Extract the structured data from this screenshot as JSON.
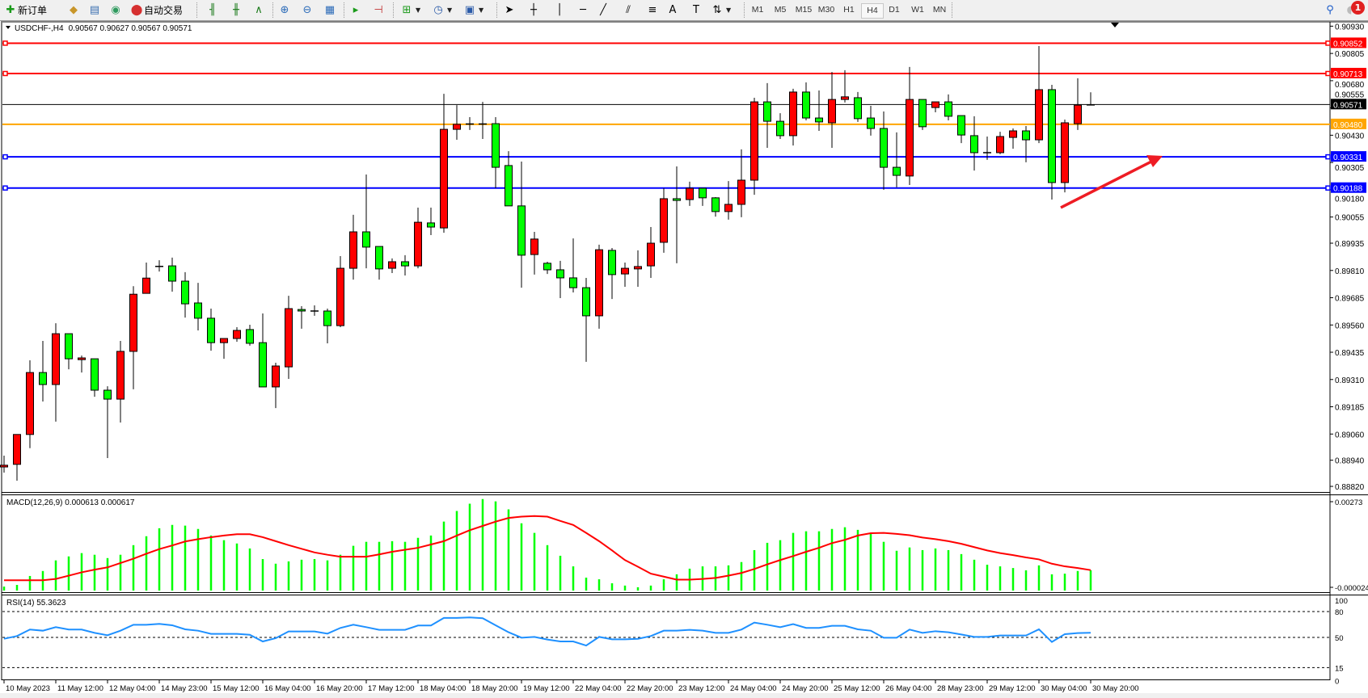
{
  "toolbar": {
    "new_order_label": "新订单",
    "auto_trade_label": "自动交易",
    "periods": [
      "M1",
      "M5",
      "M15",
      "M30",
      "H1",
      "H4",
      "D1",
      "W1",
      "MN"
    ],
    "active_period": "H4",
    "notification_count": "1"
  },
  "chart_header": {
    "symbol": "USDCHF-,H4",
    "ohlc": "0.90567 0.90627 0.90567 0.90571"
  },
  "colors": {
    "bull_candle": "#ff0000",
    "bear_candle": "#00ff00",
    "resistance": "#ff0000",
    "bid_line": "#000000",
    "pivot": "#ffa500",
    "support": "#0000ff",
    "macd_hist": "#00ff00",
    "macd_signal": "#ff0000",
    "rsi": "#1e90ff"
  },
  "chart_data": [
    {
      "type": "candlestick",
      "symbol": "USDCHF-",
      "timeframe": "H4",
      "ylim": [
        0.8882,
        0.9093
      ],
      "y_ticks": [
        "0.90930",
        "0.90805",
        "0.90680",
        "0.90555",
        "0.90430",
        "0.90305",
        "0.90180",
        "0.90055",
        "0.89935",
        "0.89810",
        "0.89685",
        "0.89560",
        "0.89435",
        "0.89310",
        "0.89185",
        "0.89060",
        "0.88940",
        "0.88820"
      ],
      "x_tick_labels": [
        "10 May 2023",
        "11 May 12:00",
        "12 May 04:00",
        "14 May 23:00",
        "15 May 12:00",
        "16 May 04:00",
        "16 May 20:00",
        "17 May 12:00",
        "18 May 04:00",
        "18 May 20:00",
        "19 May 12:00",
        "22 May 04:00",
        "22 May 20:00",
        "23 May 12:00",
        "24 May 04:00",
        "24 May 20:00",
        "25 May 12:00",
        "26 May 04:00",
        "28 May 23:00",
        "29 May 12:00",
        "30 May 04:00",
        "30 May 20:00"
      ],
      "x_tick_every_bars": 4,
      "ohlc_fields": [
        "open",
        "high",
        "low",
        "close"
      ],
      "candles": [
        [
          0.88909,
          0.88961,
          0.88883,
          0.88917
        ],
        [
          0.88921,
          0.89058,
          0.88846,
          0.89058
        ],
        [
          0.89058,
          0.89398,
          0.88995,
          0.89342
        ],
        [
          0.89342,
          0.89487,
          0.89209,
          0.89287
        ],
        [
          0.89287,
          0.89568,
          0.89117,
          0.8952
        ],
        [
          0.8952,
          0.8952,
          0.89357,
          0.89405
        ],
        [
          0.89401,
          0.8942,
          0.89342,
          0.89409
        ],
        [
          0.89405,
          0.89405,
          0.89231,
          0.89261
        ],
        [
          0.89261,
          0.89279,
          0.8895,
          0.8922
        ],
        [
          0.8922,
          0.89487,
          0.89113,
          0.89439
        ],
        [
          0.89439,
          0.89738,
          0.89265,
          0.89701
        ],
        [
          0.89705,
          0.89846,
          0.89705,
          0.89775
        ],
        [
          0.89829,
          0.89857,
          0.89805,
          0.89828
        ],
        [
          0.89831,
          0.89869,
          0.89713,
          0.89761
        ],
        [
          0.89761,
          0.89802,
          0.89594,
          0.89657
        ],
        [
          0.89661,
          0.89753,
          0.89535,
          0.89591
        ],
        [
          0.89591,
          0.89635,
          0.89442,
          0.89479
        ],
        [
          0.89479,
          0.89498,
          0.89405,
          0.89498
        ],
        [
          0.89498,
          0.8955,
          0.89483,
          0.89535
        ],
        [
          0.89539,
          0.89561,
          0.89465,
          0.89476
        ],
        [
          0.89479,
          0.89613,
          0.89276,
          0.89276
        ],
        [
          0.89276,
          0.89387,
          0.89179,
          0.89372
        ],
        [
          0.89368,
          0.89694,
          0.89313,
          0.89635
        ],
        [
          0.89631,
          0.89646,
          0.89543,
          0.89624
        ],
        [
          0.89624,
          0.8965,
          0.89602,
          0.89624
        ],
        [
          0.89624,
          0.89635,
          0.89476,
          0.89557
        ],
        [
          0.89557,
          0.89876,
          0.8955,
          0.8982
        ],
        [
          0.8982,
          0.90065,
          0.89768,
          0.89987
        ],
        [
          0.89987,
          0.9025,
          0.8982,
          0.89917
        ],
        [
          0.8992,
          0.8992,
          0.89768,
          0.89817
        ],
        [
          0.8982,
          0.89865,
          0.89798,
          0.8985
        ],
        [
          0.8985,
          0.8988,
          0.89787,
          0.89831
        ],
        [
          0.89831,
          0.90098,
          0.8982,
          0.90031
        ],
        [
          0.90028,
          0.90098,
          0.89972,
          0.90009
        ],
        [
          0.90005,
          0.9062,
          0.89983,
          0.90457
        ],
        [
          0.90457,
          0.90568,
          0.90409,
          0.9048
        ],
        [
          0.90483,
          0.90513,
          0.90454,
          0.9048
        ],
        [
          0.9048,
          0.90583,
          0.90413,
          0.90483
        ],
        [
          0.90483,
          0.90513,
          0.90187,
          0.90283
        ],
        [
          0.90291,
          0.90357,
          0.90106,
          0.90106
        ],
        [
          0.90106,
          0.90309,
          0.89731,
          0.8988
        ],
        [
          0.89883,
          0.89987,
          0.89791,
          0.89954
        ],
        [
          0.89843,
          0.8985,
          0.89794,
          0.89813
        ],
        [
          0.89813,
          0.89854,
          0.89683,
          0.89776
        ],
        [
          0.89776,
          0.89957,
          0.89709,
          0.89731
        ],
        [
          0.89731,
          0.89776,
          0.89391,
          0.89602
        ],
        [
          0.89602,
          0.89928,
          0.89543,
          0.89905
        ],
        [
          0.89902,
          0.89913,
          0.89679,
          0.89791
        ],
        [
          0.89794,
          0.89846,
          0.89735,
          0.8982
        ],
        [
          0.89817,
          0.89902,
          0.89735,
          0.89828
        ],
        [
          0.89831,
          0.90009,
          0.89776,
          0.89935
        ],
        [
          0.89939,
          0.90187,
          0.89891,
          0.90139
        ],
        [
          0.90139,
          0.90287,
          0.89843,
          0.90131
        ],
        [
          0.90135,
          0.90217,
          0.90106,
          0.90187
        ],
        [
          0.90187,
          0.90187,
          0.90106,
          0.90143
        ],
        [
          0.90143,
          0.90146,
          0.90057,
          0.9008
        ],
        [
          0.9008,
          0.9022,
          0.90043,
          0.90113
        ],
        [
          0.90113,
          0.90365,
          0.90054,
          0.90224
        ],
        [
          0.90224,
          0.90602,
          0.90157,
          0.90583
        ],
        [
          0.90583,
          0.90669,
          0.90372,
          0.90494
        ],
        [
          0.90494,
          0.90531,
          0.90413,
          0.90428
        ],
        [
          0.90428,
          0.90643,
          0.90383,
          0.90628
        ],
        [
          0.90628,
          0.90672,
          0.90498,
          0.90509
        ],
        [
          0.90509,
          0.90635,
          0.9045,
          0.90491
        ],
        [
          0.90487,
          0.9072,
          0.90372,
          0.90594
        ],
        [
          0.90594,
          0.90728,
          0.9058,
          0.90606
        ],
        [
          0.90602,
          0.90628,
          0.90491,
          0.90506
        ],
        [
          0.90509,
          0.90565,
          0.90428,
          0.90461
        ],
        [
          0.90461,
          0.90539,
          0.9018,
          0.90283
        ],
        [
          0.90283,
          0.90443,
          0.90191,
          0.90246
        ],
        [
          0.90243,
          0.90743,
          0.90202,
          0.90594
        ],
        [
          0.90594,
          0.90594,
          0.90454,
          0.90469
        ],
        [
          0.90557,
          0.90583,
          0.90535,
          0.90583
        ],
        [
          0.90583,
          0.90617,
          0.90498,
          0.90517
        ],
        [
          0.9052,
          0.9052,
          0.90394,
          0.90431
        ],
        [
          0.90428,
          0.90517,
          0.90268,
          0.9035
        ],
        [
          0.9035,
          0.90424,
          0.90317,
          0.9035
        ],
        [
          0.9035,
          0.90446,
          0.90343,
          0.90424
        ],
        [
          0.9042,
          0.90461,
          0.90368,
          0.9045
        ],
        [
          0.9045,
          0.90472,
          0.90306,
          0.90409
        ],
        [
          0.90409,
          0.90839,
          0.90394,
          0.90639
        ],
        [
          0.90639,
          0.90661,
          0.90135,
          0.90213
        ],
        [
          0.90213,
          0.90502,
          0.90168,
          0.90487
        ],
        [
          0.90483,
          0.90691,
          0.90454,
          0.90568
        ],
        [
          0.90567,
          0.90627,
          0.90567,
          0.90571
        ]
      ],
      "hlines": [
        {
          "price": 0.90852,
          "label": "0.90852",
          "color": "#ff0000",
          "kind": "resistance"
        },
        {
          "price": 0.90713,
          "label": "0.90713",
          "color": "#ff0000",
          "kind": "resistance"
        },
        {
          "price": 0.90571,
          "label": "0.90571",
          "color": "#000000",
          "kind": "bid"
        },
        {
          "price": 0.9048,
          "label": "0.90480",
          "color": "#ffa500",
          "kind": "pivot"
        },
        {
          "price": 0.90331,
          "label": "0.90331",
          "color": "#0000ff",
          "kind": "support"
        },
        {
          "price": 0.90188,
          "label": "0.90188",
          "color": "#0000ff",
          "kind": "support"
        }
      ],
      "annotation": {
        "type": "arrow",
        "color": "#ff0000",
        "direction": "up-right"
      }
    },
    {
      "type": "bar+line",
      "title": "MACD(12,26,9) 0.000613 0.000617",
      "ylim": [
        -2.4e-05,
        0.00273
      ],
      "y_ticks": [
        "0.00273",
        "-0.000024"
      ],
      "histogram": [
        0.00012,
        0.00017,
        0.00044,
        0.00059,
        0.00091,
        0.00103,
        0.00113,
        0.00108,
        0.00098,
        0.00108,
        0.00137,
        0.00164,
        0.00188,
        0.00198,
        0.00196,
        0.00186,
        0.00166,
        0.00152,
        0.00142,
        0.00127,
        0.00095,
        0.00081,
        0.00088,
        0.00093,
        0.00095,
        0.00091,
        0.00108,
        0.00135,
        0.00147,
        0.00147,
        0.00149,
        0.00147,
        0.00159,
        0.00166,
        0.00208,
        0.0024,
        0.00262,
        0.00276,
        0.00269,
        0.00245,
        0.00203,
        0.00174,
        0.00137,
        0.00105,
        0.00073,
        0.00039,
        0.00034,
        0.00022,
        0.00015,
        0.0001,
        0.00015,
        0.00034,
        0.00049,
        0.00066,
        0.00073,
        0.00073,
        0.00076,
        0.00086,
        0.00122,
        0.00144,
        0.00152,
        0.00174,
        0.00179,
        0.00179,
        0.00186,
        0.00191,
        0.00183,
        0.00171,
        0.00147,
        0.0012,
        0.0013,
        0.00122,
        0.00127,
        0.00122,
        0.0011,
        0.00093,
        0.00078,
        0.00073,
        0.00068,
        0.00061,
        0.00076,
        0.00049,
        0.00051,
        0.00059,
        0.000613
      ],
      "signal": [
        0.00031,
        0.00031,
        0.00031,
        0.00031,
        0.00035,
        0.00045,
        0.00055,
        0.00063,
        0.0007,
        0.00083,
        0.00096,
        0.00111,
        0.00125,
        0.00136,
        0.00148,
        0.00155,
        0.00161,
        0.00166,
        0.0017,
        0.0017,
        0.00161,
        0.00149,
        0.00137,
        0.00126,
        0.00115,
        0.00108,
        0.00102,
        0.00102,
        0.00102,
        0.00109,
        0.00117,
        0.00123,
        0.00129,
        0.00139,
        0.00149,
        0.00166,
        0.00182,
        0.00195,
        0.00208,
        0.00219,
        0.00223,
        0.00225,
        0.00223,
        0.0021,
        0.00198,
        0.00174,
        0.00149,
        0.00121,
        0.00092,
        0.00072,
        0.00051,
        0.00042,
        0.00033,
        0.00033,
        0.00035,
        0.00038,
        0.00045,
        0.00053,
        0.00065,
        0.00079,
        0.00092,
        0.00104,
        0.00117,
        0.00129,
        0.00143,
        0.00153,
        0.00166,
        0.00173,
        0.00174,
        0.00171,
        0.00167,
        0.0016,
        0.00155,
        0.00149,
        0.00141,
        0.00131,
        0.00121,
        0.00113,
        0.00107,
        0.001,
        0.00094,
        0.00081,
        0.00073,
        0.00068,
        0.000617
      ]
    },
    {
      "type": "line",
      "title": "RSI(14) 55.3623",
      "ylim": [
        0,
        100
      ],
      "y_ticks": [
        "100",
        "80",
        "50",
        "15",
        "0"
      ],
      "levels": [
        80,
        50,
        15
      ],
      "values": [
        48.4,
        51.6,
        59.1,
        57.8,
        61.9,
        59.1,
        59.1,
        55.3,
        52.5,
        57.8,
        64.7,
        64.7,
        65.7,
        64.1,
        59.4,
        57.8,
        54.1,
        54.1,
        54.1,
        53.1,
        45.3,
        49.1,
        56.9,
        56.9,
        56.9,
        54.4,
        61.0,
        64.7,
        61.9,
        58.8,
        58.8,
        58.8,
        63.8,
        63.8,
        72.6,
        72.6,
        73.2,
        72.3,
        64.1,
        56.0,
        49.7,
        50.6,
        47.5,
        45.3,
        45.3,
        40.6,
        50.6,
        47.8,
        47.8,
        48.4,
        51.6,
        57.8,
        57.8,
        58.8,
        57.8,
        55.3,
        55.3,
        59.1,
        67.2,
        64.7,
        61.9,
        65.4,
        61.0,
        61.0,
        63.5,
        63.5,
        59.4,
        57.8,
        49.7,
        49.7,
        59.1,
        55.3,
        57.2,
        56.0,
        53.4,
        50.6,
        50.6,
        52.2,
        52.2,
        52.2,
        59.4,
        44.7,
        53.8,
        55.0,
        55.3623
      ]
    }
  ]
}
